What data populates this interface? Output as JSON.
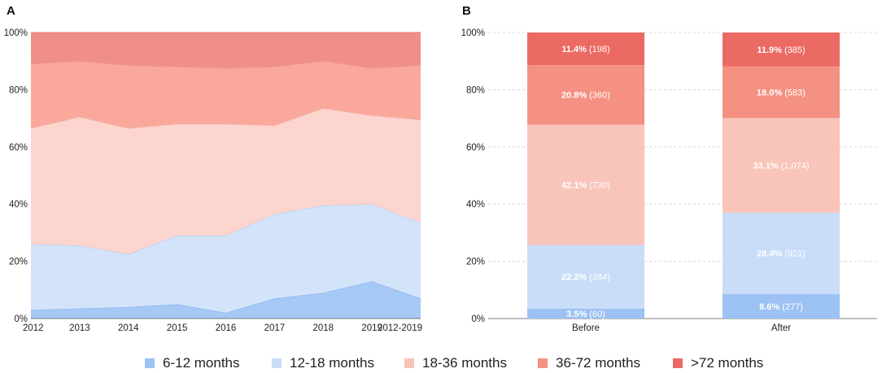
{
  "colors": {
    "6-12": "#a6c8f5",
    "12-18": "#d3e4fa",
    "18-36": "#fcd5ce",
    "36-72": "#fba89c",
    ">72": "#f08f88"
  },
  "legend": [
    {
      "key": "6-12",
      "label": "6-12 months"
    },
    {
      "key": "12-18",
      "label": "12-18 months"
    },
    {
      "key": "18-36",
      "label": "18-36 months"
    },
    {
      "key": "36-72",
      "label": "36-72 months"
    },
    {
      "key": ">72",
      "label": ">72 months"
    }
  ],
  "chart_data": [
    {
      "panel": "A",
      "type": "area",
      "stacked": true,
      "categories": [
        "2012",
        "2013",
        "2014",
        "2015",
        "2016",
        "2017",
        "2018",
        "2019",
        "2012-2019"
      ],
      "ylim": [
        0,
        100
      ],
      "yticks": [
        "0%",
        "20%",
        "40%",
        "60%",
        "80%",
        "100%"
      ],
      "series": [
        {
          "name": "6-12 months",
          "key": "6-12",
          "values": [
            3,
            3.5,
            4,
            5,
            2,
            7,
            9,
            13,
            7
          ]
        },
        {
          "name": "12-18 months",
          "key": "12-18",
          "values": [
            23,
            22,
            18.5,
            24,
            27,
            29.5,
            30.5,
            27,
            26.5
          ]
        },
        {
          "name": "18-36 months",
          "key": "18-36",
          "values": [
            40.5,
            45,
            44,
            39,
            39,
            31,
            34,
            31,
            36
          ]
        },
        {
          "name": "36-72 months",
          "key": "36-72",
          "values": [
            22.5,
            19.5,
            22,
            20,
            19.5,
            20.5,
            16.5,
            16.5,
            19
          ]
        },
        {
          "name": ">72 months",
          "key": ">72",
          "values": [
            11,
            10,
            11.5,
            12,
            12.5,
            12,
            10,
            12.5,
            11.5
          ]
        }
      ]
    },
    {
      "panel": "B",
      "type": "bar",
      "stacked": true,
      "categories": [
        "Before",
        "After"
      ],
      "ylim": [
        0,
        100
      ],
      "yticks": [
        "0%",
        "20%",
        "40%",
        "60%",
        "80%",
        "100%"
      ],
      "series": [
        {
          "name": "6-12 months",
          "key": "6-12",
          "values": [
            3.5,
            8.6
          ],
          "labels": [
            "3.5%",
            "8.6%"
          ],
          "counts": [
            "(60)",
            "(277)"
          ]
        },
        {
          "name": "12-18 months",
          "key": "12-18",
          "values": [
            22.2,
            28.4
          ],
          "labels": [
            "22.2%",
            "28.4%"
          ],
          "counts": [
            "(384)",
            "(921)"
          ]
        },
        {
          "name": "18-36 months",
          "key": "18-36",
          "values": [
            42.1,
            33.1
          ],
          "labels": [
            "42.1%",
            "33.1%"
          ],
          "counts": [
            "(730)",
            "(1,074)"
          ]
        },
        {
          "name": "36-72 months",
          "key": "36-72",
          "values": [
            20.8,
            18.0
          ],
          "labels": [
            "20.8%",
            "18.0%"
          ],
          "counts": [
            "(360)",
            "(583)"
          ]
        },
        {
          "name": ">72 months",
          "key": ">72",
          "values": [
            11.4,
            11.9
          ],
          "labels": [
            "11.4%",
            "11.9%"
          ],
          "counts": [
            "(198)",
            "(385)"
          ]
        }
      ]
    }
  ],
  "barColors": {
    "6-12": "#9cc1f3",
    "12-18": "#c9ddf9",
    "18-36": "#f9c4b9",
    ">72": "#eb6a64",
    "36-72": "#f59182"
  }
}
